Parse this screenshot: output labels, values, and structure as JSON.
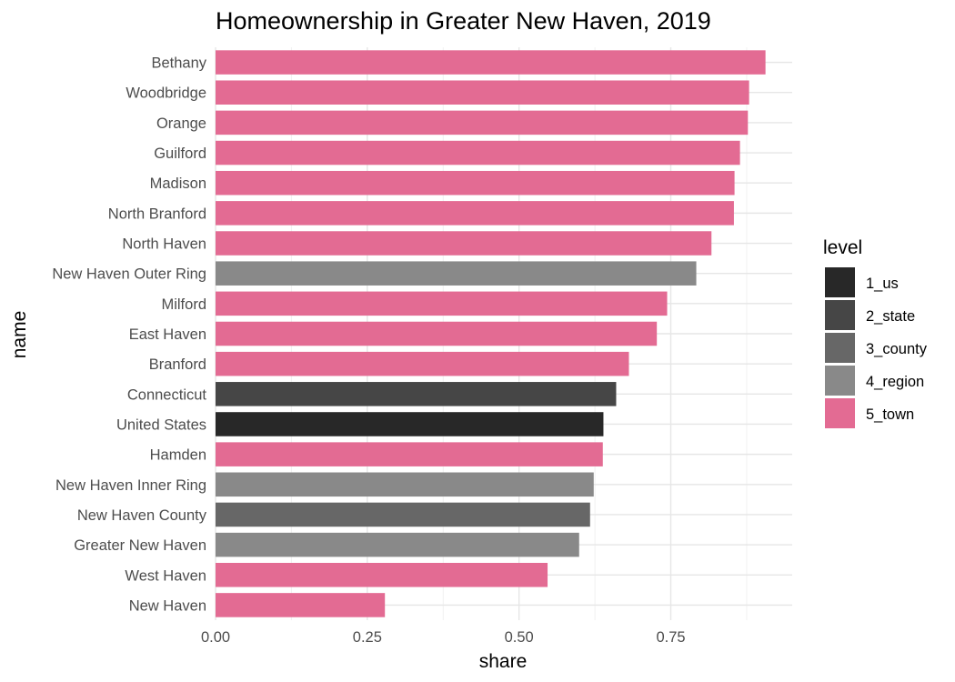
{
  "chart_data": {
    "type": "bar",
    "orientation": "horizontal",
    "title": "Homeownership in Greater New Haven, 2019",
    "xlabel": "share",
    "ylabel": "name",
    "xlim": [
      0,
      0.95
    ],
    "x_ticks": [
      "0.00",
      "0.25",
      "0.50",
      "0.75"
    ],
    "grid": true,
    "legend": {
      "title": "level",
      "position": "right",
      "entries": [
        {
          "key": "1_us",
          "label": "1_us",
          "color": "#282828"
        },
        {
          "key": "2_state",
          "label": "2_state",
          "color": "#464646"
        },
        {
          "key": "3_county",
          "label": "3_county",
          "color": "#676767"
        },
        {
          "key": "4_region",
          "label": "4_region",
          "color": "#898989"
        },
        {
          "key": "5_town",
          "label": "5_town",
          "color": "#e36b93"
        }
      ]
    },
    "bars": [
      {
        "name": "Bethany",
        "share": 0.906,
        "level": "5_town"
      },
      {
        "name": "Woodbridge",
        "share": 0.879,
        "level": "5_town"
      },
      {
        "name": "Orange",
        "share": 0.877,
        "level": "5_town"
      },
      {
        "name": "Guilford",
        "share": 0.864,
        "level": "5_town"
      },
      {
        "name": "Madison",
        "share": 0.855,
        "level": "5_town"
      },
      {
        "name": "North Branford",
        "share": 0.854,
        "level": "5_town"
      },
      {
        "name": "North Haven",
        "share": 0.817,
        "level": "5_town"
      },
      {
        "name": "New Haven Outer Ring",
        "share": 0.792,
        "level": "4_region"
      },
      {
        "name": "Milford",
        "share": 0.744,
        "level": "5_town"
      },
      {
        "name": "East Haven",
        "share": 0.727,
        "level": "5_town"
      },
      {
        "name": "Branford",
        "share": 0.681,
        "level": "5_town"
      },
      {
        "name": "Connecticut",
        "share": 0.66,
        "level": "2_state"
      },
      {
        "name": "United States",
        "share": 0.639,
        "level": "1_us"
      },
      {
        "name": "Hamden",
        "share": 0.638,
        "level": "5_town"
      },
      {
        "name": "New Haven Inner Ring",
        "share": 0.623,
        "level": "4_region"
      },
      {
        "name": "New Haven County",
        "share": 0.617,
        "level": "3_county"
      },
      {
        "name": "Greater New Haven",
        "share": 0.599,
        "level": "4_region"
      },
      {
        "name": "West Haven",
        "share": 0.547,
        "level": "5_town"
      },
      {
        "name": "New Haven",
        "share": 0.279,
        "level": "5_town"
      }
    ]
  }
}
